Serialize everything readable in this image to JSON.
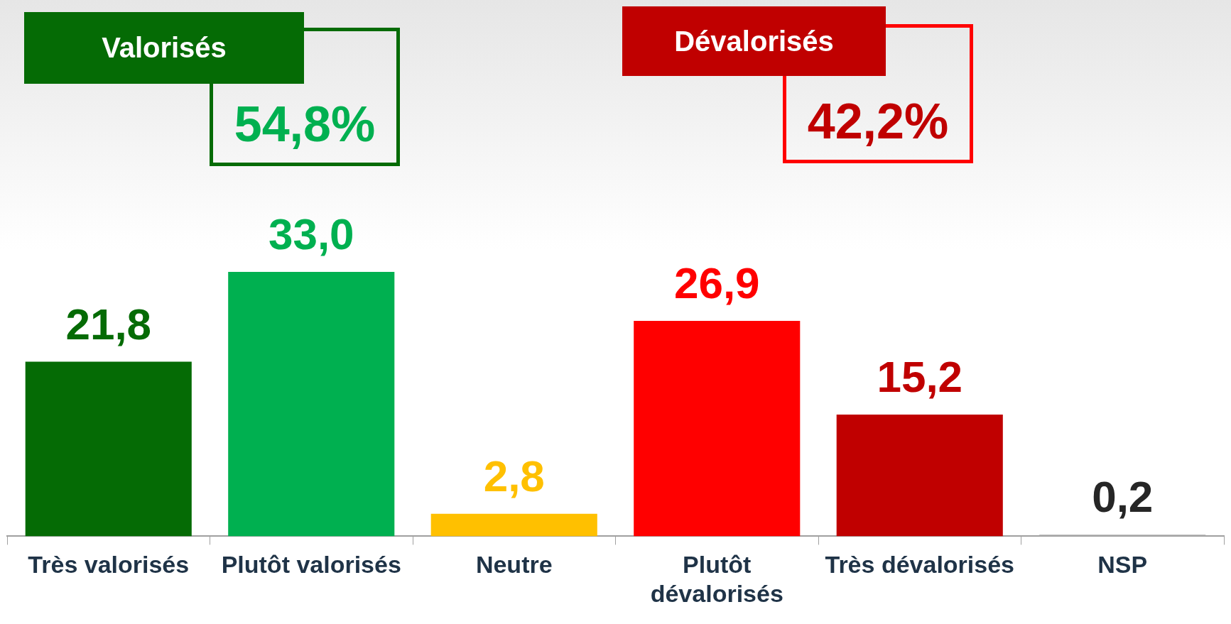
{
  "chart_data": {
    "type": "bar",
    "categories": [
      "Très valorisés",
      "Plutôt valorisés",
      "Neutre",
      "Plutôt dévalorisés",
      "Très dévalorisés",
      "NSP"
    ],
    "values": [
      21.8,
      33.0,
      2.8,
      26.9,
      15.2,
      0.2
    ],
    "colors": [
      "#056b05",
      "#00b050",
      "#ffc000",
      "#ff0000",
      "#c00000",
      "#a6a6a6"
    ],
    "value_labels": [
      "21,8",
      "33,0",
      "2,8",
      "26,9",
      "15,2",
      "0,2"
    ],
    "legend": false,
    "grid": false,
    "annotations": [
      "Valorisés",
      "54,8%",
      "Dévalorisés",
      "42,2%"
    ]
  }
}
